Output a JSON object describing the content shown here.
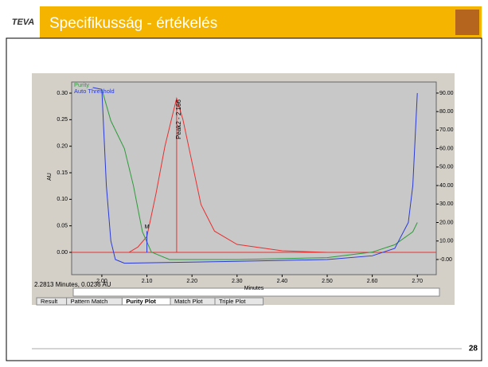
{
  "slide": {
    "logo": "TEVA",
    "title": "Specifikusság - értékelés",
    "page": "28"
  },
  "screenshot": {
    "status": "2.2813 Minutes, 0.0236 AU",
    "tabs": [
      "Result",
      "Pattern Match",
      "Purity Plot",
      "Match Plot",
      "Triple Plot"
    ]
  },
  "chart_data": {
    "type": "line",
    "xlabel": "Minutes",
    "ylabel": "AU",
    "xlim": [
      1.933,
      2.742
    ],
    "ylim": [
      -0.042,
      0.321
    ],
    "y2lim": [
      -8.2,
      96
    ],
    "xticks": [
      {
        "value": 2.0,
        "label": "2.00"
      },
      {
        "value": 2.1,
        "label": "2.10"
      },
      {
        "value": 2.2,
        "label": "2.20"
      },
      {
        "value": 2.3,
        "label": "2.30"
      },
      {
        "value": 2.4,
        "label": "2.40"
      },
      {
        "value": 2.5,
        "label": "2.50"
      },
      {
        "value": 2.6,
        "label": "2.60"
      },
      {
        "value": 2.7,
        "label": "2.70"
      }
    ],
    "yticks": [
      {
        "value": 0,
        "label": "0.00"
      },
      {
        "value": 0.05,
        "label": "0.05"
      },
      {
        "value": 0.1,
        "label": "0.10"
      },
      {
        "value": 0.15,
        "label": "0.15"
      },
      {
        "value": 0.2,
        "label": "0.20"
      },
      {
        "value": 0.25,
        "label": "0.25"
      },
      {
        "value": 0.3,
        "label": "0.30"
      }
    ],
    "y2ticks": [
      {
        "value": 0,
        "label": "-0.00"
      },
      {
        "value": 10,
        "label": "10.00"
      },
      {
        "value": 20,
        "label": "20.00"
      },
      {
        "value": 30,
        "label": "30.00"
      },
      {
        "value": 40,
        "label": "40.00"
      },
      {
        "value": 50,
        "label": "50.00"
      },
      {
        "value": 60,
        "label": "60.00"
      },
      {
        "value": 70,
        "label": "70.00"
      },
      {
        "value": 80,
        "label": "80.00"
      },
      {
        "value": 90,
        "label": "90.00"
      }
    ],
    "series": [
      {
        "color": "#e83030",
        "x": [
          1.95,
          2.06,
          2.08,
          2.1,
          2.12,
          2.14,
          2.16,
          2.166,
          2.18,
          2.2,
          2.22,
          2.25,
          2.3,
          2.4,
          2.5,
          2.72
        ],
        "values": [
          0,
          0,
          0.01,
          0.03,
          0.11,
          0.2,
          0.27,
          0.29,
          0.25,
          0.17,
          0.09,
          0.04,
          0.015,
          0.003,
          0,
          0
        ]
      },
      {
        "name": "Purity",
        "color": "#2e9a3a",
        "axis": "y2",
        "x": [
          2.0,
          2.02,
          2.05,
          2.07,
          2.09,
          2.11,
          2.15,
          2.3,
          2.5,
          2.6,
          2.65,
          2.69,
          2.7
        ],
        "values": [
          92,
          75,
          60,
          40,
          15,
          4,
          0,
          0,
          1,
          4,
          8,
          15,
          20
        ]
      },
      {
        "name": "Auto Threshold",
        "color": "#2a3ad8",
        "axis": "y2",
        "x": [
          1.98,
          2.0,
          2.01,
          2.02,
          2.03,
          2.05,
          2.3,
          2.5,
          2.6,
          2.65,
          2.68,
          2.69,
          2.7
        ],
        "values": [
          93,
          92,
          40,
          10,
          0,
          -2,
          -1,
          0,
          2,
          6,
          20,
          40,
          90
        ]
      }
    ],
    "annotations": [
      {
        "text": "Peak2 - 2.166",
        "x": 2.166
      },
      {
        "text": "M",
        "x": 2.1,
        "y": 0.04
      }
    ]
  }
}
